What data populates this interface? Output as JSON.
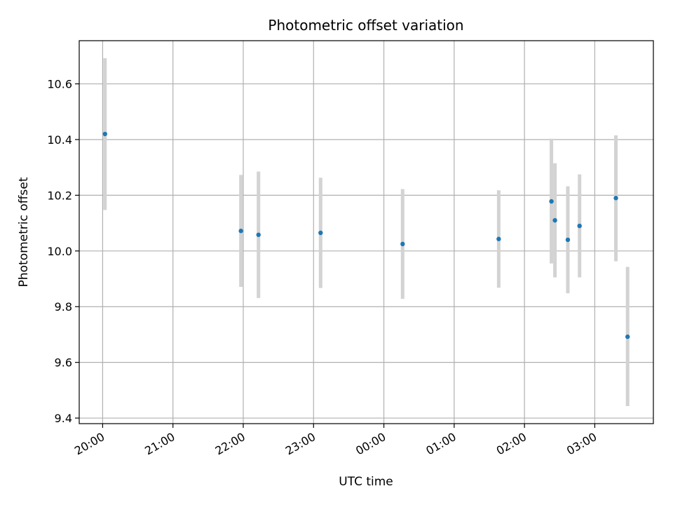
{
  "chart_data": {
    "type": "scatter",
    "title": "Photometric offset variation",
    "xlabel": "UTC time",
    "ylabel": "Photometric offset",
    "x_ticks": [
      "20:00",
      "21:00",
      "22:00",
      "23:00",
      "00:00",
      "01:00",
      "02:00",
      "03:00"
    ],
    "y_ticks": [
      "9.4",
      "9.6",
      "9.8",
      "10.0",
      "10.2",
      "10.4",
      "10.6"
    ],
    "ylim": [
      9.38,
      10.755
    ],
    "xlim": [
      "19:40",
      "03:50"
    ],
    "grid": true,
    "colors": {
      "marker": "#1f77b4",
      "errorbar": "#d3d3d3",
      "grid": "#b0b0b0"
    },
    "points": [
      {
        "x": "20:02",
        "y": 10.42,
        "err_low": 10.147,
        "err_high": 10.692
      },
      {
        "x": "21:58",
        "y": 10.072,
        "err_low": 9.871,
        "err_high": 10.273
      },
      {
        "x": "22:13",
        "y": 10.058,
        "err_low": 9.831,
        "err_high": 10.285
      },
      {
        "x": "23:06",
        "y": 10.065,
        "err_low": 9.867,
        "err_high": 10.263
      },
      {
        "x": "00:16",
        "y": 10.025,
        "err_low": 9.828,
        "err_high": 10.222
      },
      {
        "x": "01:38",
        "y": 10.043,
        "err_low": 9.868,
        "err_high": 10.218
      },
      {
        "x": "02:23",
        "y": 10.178,
        "err_low": 9.955,
        "err_high": 10.403
      },
      {
        "x": "02:26",
        "y": 10.11,
        "err_low": 9.905,
        "err_high": 10.315
      },
      {
        "x": "02:37",
        "y": 10.04,
        "err_low": 9.848,
        "err_high": 10.232
      },
      {
        "x": "02:47",
        "y": 10.09,
        "err_low": 9.905,
        "err_high": 10.275
      },
      {
        "x": "03:18",
        "y": 10.19,
        "err_low": 9.963,
        "err_high": 10.415
      },
      {
        "x": "03:28",
        "y": 9.692,
        "err_low": 9.443,
        "err_high": 9.943
      }
    ]
  }
}
